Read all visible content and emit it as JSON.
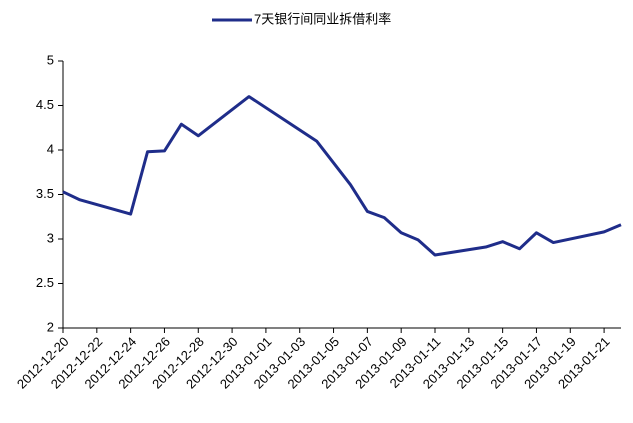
{
  "chart_data": {
    "type": "line",
    "x": [
      "2012-12-20",
      "2012-12-21",
      "2012-12-24",
      "2012-12-25",
      "2012-12-26",
      "2012-12-27",
      "2012-12-28",
      "2012-12-31",
      "2013-01-04",
      "2013-01-06",
      "2013-01-07",
      "2013-01-08",
      "2013-01-09",
      "2013-01-10",
      "2013-01-11",
      "2013-01-14",
      "2013-01-15",
      "2013-01-16",
      "2013-01-17",
      "2013-01-18",
      "2013-01-21",
      "2013-01-22"
    ],
    "series": [
      {
        "name": "7天银行间同业拆借利率",
        "color": "#1f2d8a",
        "values": [
          3.53,
          3.44,
          3.28,
          3.98,
          3.99,
          4.29,
          4.16,
          4.6,
          4.1,
          3.61,
          3.31,
          3.24,
          3.07,
          2.99,
          2.82,
          2.91,
          2.97,
          2.89,
          3.07,
          2.96,
          3.08,
          3.16
        ]
      }
    ],
    "xlim": [
      "2012-12-20",
      "2013-01-22"
    ],
    "xticks": [
      "2012-12-20",
      "2012-12-22",
      "2012-12-24",
      "2012-12-26",
      "2012-12-28",
      "2012-12-30",
      "2013-01-01",
      "2013-01-03",
      "2013-01-05",
      "2013-01-07",
      "2013-01-09",
      "2013-01-11",
      "2013-01-13",
      "2013-01-15",
      "2013-01-17",
      "2013-01-19",
      "2013-01-21"
    ],
    "ylim": [
      2,
      5
    ],
    "yticks": [
      2,
      2.5,
      3,
      3.5,
      4,
      4.5,
      5
    ],
    "grid": false,
    "legend": "top"
  }
}
